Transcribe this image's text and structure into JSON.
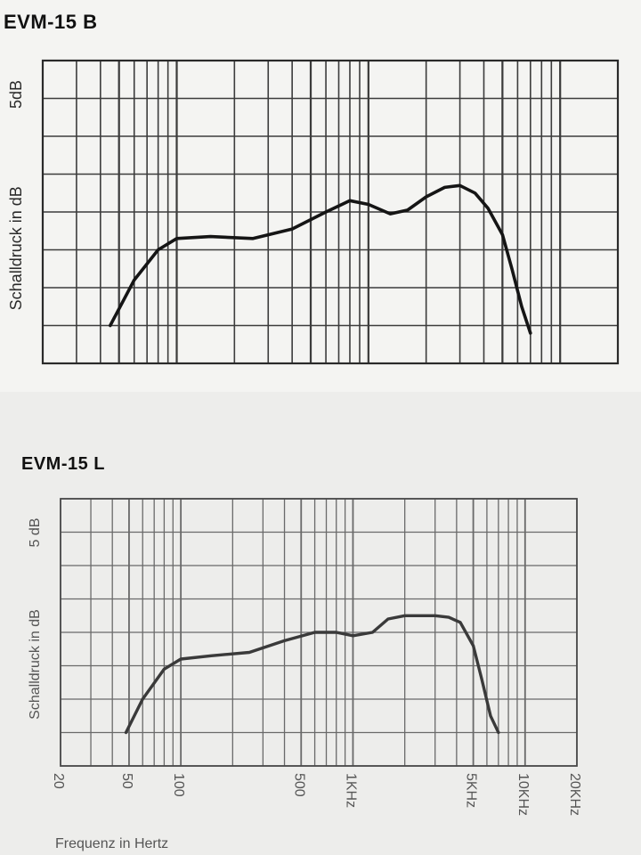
{
  "chart_data": [
    {
      "type": "line",
      "title": "EVM-15 B",
      "ylabel": "Schalldruck in dB",
      "scale_label": "5dB",
      "xlabel": "",
      "xscale": "log",
      "xlim": [
        20,
        20000
      ],
      "ylim": [
        0,
        8
      ],
      "grid": true,
      "tick_labels": [],
      "x": [
        45,
        60,
        80,
        100,
        150,
        250,
        400,
        600,
        800,
        1000,
        1300,
        1600,
        2000,
        2500,
        3000,
        3600,
        4200,
        5000,
        5600,
        6300,
        7000
      ],
      "y": [
        1.0,
        2.2,
        3.0,
        3.3,
        3.35,
        3.3,
        3.55,
        4.0,
        4.3,
        4.2,
        3.95,
        4.05,
        4.4,
        4.65,
        4.7,
        4.5,
        4.1,
        3.4,
        2.5,
        1.5,
        0.8
      ]
    },
    {
      "type": "line",
      "title": "EVM-15 L",
      "ylabel": "Schalldruck in dB",
      "scale_label": "5 dB",
      "xlabel": "Frequenz in Hertz",
      "xscale": "log",
      "xlim": [
        20,
        20000
      ],
      "ylim": [
        0,
        8
      ],
      "grid": true,
      "tick_labels": [
        "20",
        "50",
        "100",
        "500",
        "1KHz",
        "5KHz",
        "10KHz",
        "20KHz"
      ],
      "tick_values": [
        20,
        50,
        100,
        500,
        1000,
        5000,
        10000,
        20000
      ],
      "x": [
        48,
        60,
        80,
        100,
        150,
        250,
        400,
        600,
        800,
        1000,
        1300,
        1600,
        2000,
        2500,
        3000,
        3600,
        4200,
        5000,
        5600,
        6300,
        7000
      ],
      "y": [
        1.0,
        2.0,
        2.9,
        3.2,
        3.3,
        3.4,
        3.75,
        4.0,
        4.0,
        3.9,
        4.0,
        4.4,
        4.5,
        4.5,
        4.5,
        4.45,
        4.3,
        3.6,
        2.6,
        1.5,
        1.0
      ]
    }
  ]
}
